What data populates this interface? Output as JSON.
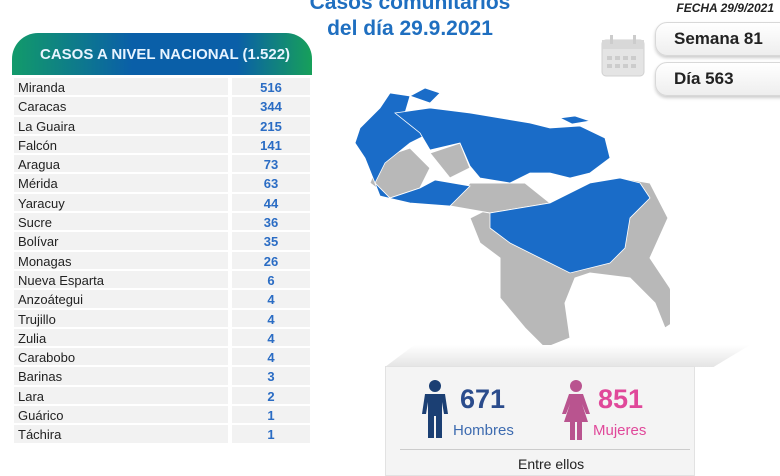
{
  "title": {
    "line1": "Casos comunitarios",
    "line2": "del día 29.9.2021"
  },
  "fecha": "FECHA 29/9/2021",
  "semana": "Semana 81",
  "dia": "Día 563",
  "table": {
    "header": "CASOS A NIVEL NACIONAL (1.522)",
    "rows": [
      {
        "name": "Miranda",
        "value": "516"
      },
      {
        "name": "Caracas",
        "value": "344"
      },
      {
        "name": "La Guaira",
        "value": "215"
      },
      {
        "name": "Falcón",
        "value": "141"
      },
      {
        "name": "Aragua",
        "value": "73"
      },
      {
        "name": "Mérida",
        "value": "63"
      },
      {
        "name": "Yaracuy",
        "value": "44"
      },
      {
        "name": "Sucre",
        "value": "36"
      },
      {
        "name": "Bolívar",
        "value": "35"
      },
      {
        "name": "Monagas",
        "value": "26"
      },
      {
        "name": "Nueva Esparta",
        "value": "6"
      },
      {
        "name": "Anzoátegui",
        "value": "4"
      },
      {
        "name": "Trujillo",
        "value": "4"
      },
      {
        "name": "Zulia",
        "value": "4"
      },
      {
        "name": "Carabobo",
        "value": "4"
      },
      {
        "name": "Barinas",
        "value": "3"
      },
      {
        "name": "Lara",
        "value": "2"
      },
      {
        "name": "Guárico",
        "value": "1"
      },
      {
        "name": "Táchira",
        "value": "1"
      }
    ]
  },
  "gender": {
    "men_count": "671",
    "men_label": "Hombres",
    "women_count": "851",
    "women_label": "Mujeres",
    "footer": "Entre ellos"
  },
  "colors": {
    "blue": "#1a6cc8",
    "gray": "#b8b8b8",
    "men": "#1b3f73",
    "women": "#e0489a"
  }
}
